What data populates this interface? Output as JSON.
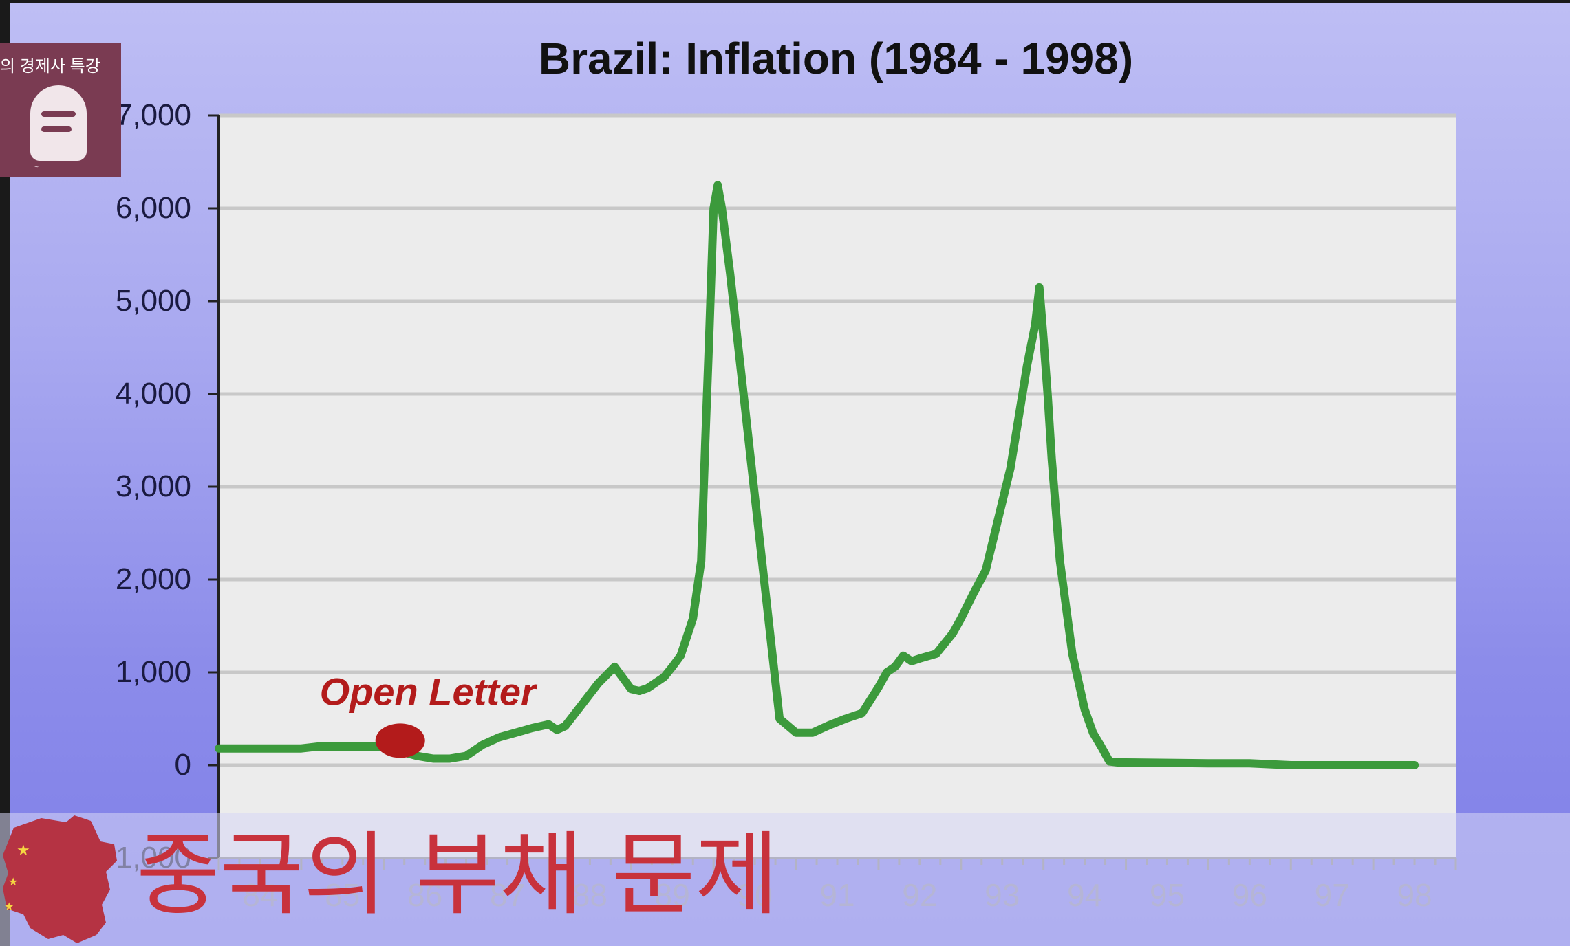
{
  "slide": {
    "logo_text": "의 경제사 특강",
    "caption": "중국의 부채 문제"
  },
  "chart_data": {
    "type": "line",
    "title": "Brazil: Inflation (1984 - 1998)",
    "xlabel": "",
    "ylabel": "",
    "ylim": [
      -1000,
      7000
    ],
    "xlim": [
      1984,
      1999
    ],
    "y_ticks": [
      "-1,000",
      "0",
      "1,000",
      "2,000",
      "3,000",
      "4,000",
      "5,000",
      "6,000",
      "7,000"
    ],
    "y_tick_values": [
      -1000,
      0,
      1000,
      2000,
      3000,
      4000,
      5000,
      6000,
      7000
    ],
    "x_ticks": [
      "84",
      "85",
      "86",
      "87",
      "88",
      "89",
      "90",
      "91",
      "92",
      "93",
      "94",
      "95",
      "96",
      "97",
      "98"
    ],
    "grid": true,
    "series": [
      {
        "color": "#3c9a3c",
        "x": [
          1984.0,
          1985.0,
          1985.2,
          1986.0,
          1986.2,
          1986.4,
          1986.6,
          1986.8,
          1987.0,
          1987.2,
          1987.4,
          1987.6,
          1987.8,
          1988.0,
          1988.1,
          1988.2,
          1988.4,
          1988.6,
          1988.8,
          1989.0,
          1989.1,
          1989.2,
          1989.4,
          1989.5,
          1989.6,
          1989.75,
          1989.85,
          1989.9,
          1989.95,
          1990.0,
          1990.05,
          1990.1,
          1990.2,
          1990.35,
          1990.5,
          1990.6,
          1990.7,
          1990.8,
          1991.0,
          1991.2,
          1991.4,
          1991.6,
          1991.8,
          1992.0,
          1992.1,
          1992.2,
          1992.3,
          1992.4,
          1992.5,
          1992.7,
          1992.9,
          1993.0,
          1993.15,
          1993.3,
          1993.45,
          1993.6,
          1993.7,
          1993.8,
          1993.9,
          1993.95,
          1994.0,
          1994.05,
          1994.1,
          1994.2,
          1994.35,
          1994.5,
          1994.6,
          1994.7,
          1994.8,
          1994.9,
          1995.0,
          1996.0,
          1996.5,
          1997.0,
          1998.0,
          1998.5
        ],
        "values": [
          180,
          180,
          200,
          200,
          150,
          100,
          70,
          70,
          100,
          220,
          300,
          350,
          400,
          440,
          380,
          420,
          650,
          880,
          1060,
          820,
          800,
          830,
          950,
          1060,
          1180,
          1580,
          2200,
          3500,
          4700,
          6000,
          6250,
          6000,
          5300,
          4100,
          2900,
          2100,
          1300,
          500,
          350,
          350,
          430,
          500,
          560,
          840,
          1000,
          1060,
          1180,
          1120,
          1150,
          1200,
          1420,
          1580,
          1850,
          2100,
          2650,
          3200,
          3750,
          4300,
          4750,
          5150,
          4600,
          4000,
          3300,
          2200,
          1200,
          600,
          350,
          200,
          40,
          30,
          30,
          20,
          20,
          0,
          0,
          0
        ]
      }
    ],
    "annotations": [
      {
        "text": "Open Letter",
        "x": 1986.2,
        "y": 190
      }
    ]
  }
}
